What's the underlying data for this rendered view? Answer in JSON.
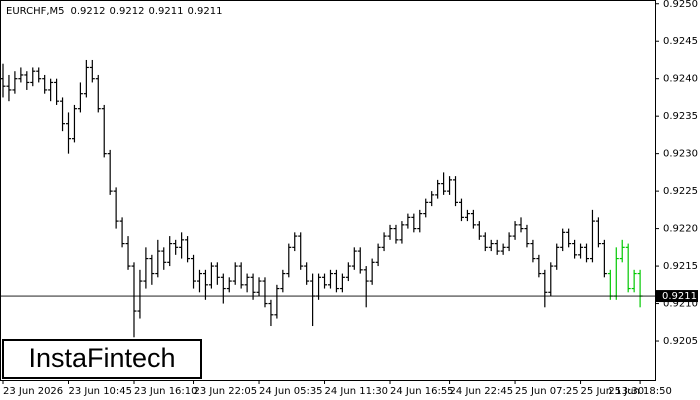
{
  "chart_data": {
    "type": "ohlc",
    "symbol": "EURCHF,M5",
    "quote": [
      0.9212,
      0.9212,
      0.9211,
      0.9211
    ],
    "brand": "InstaFintech",
    "current_price": 0.9211,
    "ylim": [
      0.91998,
      0.92505
    ],
    "yticks": [
      {
        "value": 0.925,
        "label": "0.9250"
      },
      0.9245,
      {
        "value": 0.924,
        "label": "0.9240"
      },
      0.9235,
      {
        "value": 0.923,
        "label": "0.9230"
      },
      0.9225,
      {
        "value": 0.922,
        "label": "0.9220"
      },
      0.9215,
      {
        "value": 0.921,
        "label": "0.9210"
      },
      0.9205
    ],
    "xlim": [
      0,
      109
    ],
    "xticks": [
      {
        "value": 0,
        "label": "23 Jun 2026"
      },
      {
        "value": 11,
        "label": "23 Jun 10:45"
      },
      {
        "value": 22,
        "label": "23 Jun 16:10"
      },
      {
        "value": 32,
        "label": "23 Jun 22:05"
      },
      {
        "value": 43,
        "label": "24 Jun 05:35"
      },
      {
        "value": 54,
        "label": "24 Jun 11:30"
      },
      {
        "value": 65,
        "label": "24 Jun 16:55"
      },
      {
        "value": 75,
        "label": "24 Jun 22:45"
      },
      {
        "value": 86,
        "label": "25 Jun 07:25"
      },
      {
        "value": 97,
        "label": "25 Jun 13:30"
      },
      {
        "value": 107,
        "label": "25 Jun 18:50"
      }
    ],
    "series": [
      {
        "color": "#000000",
        "x0": 0,
        "ohlc": [
          [
            0.924,
            0.9242,
            0.92375,
            0.9239
          ],
          [
            0.9239,
            0.92405,
            0.9237,
            0.92385
          ],
          [
            0.92385,
            0.9241,
            0.9238,
            0.924
          ],
          [
            0.924,
            0.92415,
            0.92395,
            0.92405
          ],
          [
            0.92405,
            0.9241,
            0.92385,
            0.92395
          ],
          [
            0.92395,
            0.92415,
            0.9239,
            0.9241
          ],
          [
            0.9241,
            0.92415,
            0.92395,
            0.924
          ],
          [
            0.924,
            0.92405,
            0.9238,
            0.92385
          ],
          [
            0.92385,
            0.924,
            0.9237,
            0.92395
          ],
          [
            0.92395,
            0.924,
            0.92365,
            0.9237
          ],
          [
            0.9237,
            0.92375,
            0.9233,
            0.9234
          ],
          [
            0.9234,
            0.92355,
            0.923,
            0.9232
          ],
          [
            0.9232,
            0.92365,
            0.92315,
            0.9236
          ],
          [
            0.9236,
            0.92395,
            0.92355,
            0.9238
          ],
          [
            0.9238,
            0.92425,
            0.92375,
            0.92415
          ],
          [
            0.92415,
            0.92425,
            0.92395,
            0.924
          ],
          [
            0.924,
            0.92405,
            0.92355,
            0.9236
          ],
          [
            0.9236,
            0.92365,
            0.92295,
            0.923
          ],
          [
            0.923,
            0.92305,
            0.92245,
            0.9225
          ],
          [
            0.9225,
            0.92255,
            0.922,
            0.9221
          ],
          [
            0.9221,
            0.92215,
            0.92175,
            0.9218
          ],
          [
            0.9218,
            0.9219,
            0.92145,
            0.9215
          ],
          [
            0.9215,
            0.92155,
            0.92055,
            0.9209
          ],
          [
            0.9209,
            0.92145,
            0.9208,
            0.9213
          ],
          [
            0.9213,
            0.92175,
            0.9212,
            0.9216
          ],
          [
            0.9216,
            0.92165,
            0.92125,
            0.9214
          ],
          [
            0.9214,
            0.92185,
            0.92135,
            0.9217
          ],
          [
            0.9217,
            0.92175,
            0.92145,
            0.92155
          ],
          [
            0.92155,
            0.9219,
            0.9215,
            0.9218
          ],
          [
            0.9218,
            0.92185,
            0.92165,
            0.92175
          ],
          [
            0.92175,
            0.92195,
            0.9216,
            0.92185
          ],
          [
            0.92185,
            0.9219,
            0.92155,
            0.9216
          ],
          [
            0.9216,
            0.92165,
            0.9212,
            0.9213
          ],
          [
            0.9213,
            0.92145,
            0.92115,
            0.9214
          ],
          [
            0.9214,
            0.92145,
            0.92105,
            0.92125
          ],
          [
            0.92125,
            0.92155,
            0.9212,
            0.9215
          ],
          [
            0.9215,
            0.92155,
            0.92125,
            0.92135
          ],
          [
            0.92135,
            0.9214,
            0.921,
            0.9212
          ],
          [
            0.9212,
            0.92135,
            0.92115,
            0.9213
          ],
          [
            0.9213,
            0.92155,
            0.92125,
            0.9215
          ],
          [
            0.9215,
            0.92155,
            0.9212,
            0.92125
          ],
          [
            0.92125,
            0.9214,
            0.92115,
            0.92135
          ],
          [
            0.92135,
            0.9214,
            0.92105,
            0.92115
          ],
          [
            0.92115,
            0.92135,
            0.9211,
            0.9213
          ],
          [
            0.9213,
            0.92135,
            0.92095,
            0.921
          ],
          [
            0.921,
            0.92105,
            0.9207,
            0.92085
          ],
          [
            0.92085,
            0.92125,
            0.9208,
            0.9212
          ],
          [
            0.9212,
            0.92145,
            0.92115,
            0.9214
          ],
          [
            0.9214,
            0.9218,
            0.92135,
            0.92175
          ],
          [
            0.92175,
            0.92195,
            0.9217,
            0.9219
          ],
          [
            0.9219,
            0.92195,
            0.92145,
            0.9215
          ],
          [
            0.9215,
            0.92155,
            0.92125,
            0.9213
          ],
          [
            0.9213,
            0.9214,
            0.9207,
            0.9211
          ],
          [
            0.9211,
            0.9214,
            0.92105,
            0.92135
          ],
          [
            0.92135,
            0.9214,
            0.9212,
            0.92125
          ],
          [
            0.92125,
            0.92145,
            0.9212,
            0.9214
          ],
          [
            0.9214,
            0.92145,
            0.92115,
            0.9212
          ],
          [
            0.9212,
            0.9214,
            0.92115,
            0.92135
          ],
          [
            0.92135,
            0.92155,
            0.9213,
            0.9215
          ],
          [
            0.9215,
            0.92175,
            0.92145,
            0.9217
          ],
          [
            0.9217,
            0.92175,
            0.9214,
            0.92145
          ],
          [
            0.92145,
            0.9215,
            0.92095,
            0.9213
          ],
          [
            0.9213,
            0.9216,
            0.92125,
            0.92155
          ],
          [
            0.92155,
            0.9218,
            0.9215,
            0.92175
          ],
          [
            0.92175,
            0.92195,
            0.9217,
            0.9219
          ],
          [
            0.9219,
            0.92205,
            0.92185,
            0.922
          ],
          [
            0.922,
            0.92205,
            0.9218,
            0.92185
          ],
          [
            0.92185,
            0.9221,
            0.9218,
            0.92205
          ],
          [
            0.92205,
            0.9222,
            0.922,
            0.92215
          ],
          [
            0.92215,
            0.9222,
            0.92195,
            0.922
          ],
          [
            0.922,
            0.92225,
            0.92195,
            0.9222
          ],
          [
            0.9222,
            0.9224,
            0.92215,
            0.92235
          ],
          [
            0.92235,
            0.9225,
            0.9223,
            0.92245
          ],
          [
            0.92245,
            0.92265,
            0.9224,
            0.9226
          ],
          [
            0.9226,
            0.92275,
            0.92245,
            0.9225
          ],
          [
            0.9225,
            0.9227,
            0.92245,
            0.92265
          ],
          [
            0.92265,
            0.9227,
            0.9223,
            0.92235
          ],
          [
            0.92235,
            0.9224,
            0.9221,
            0.92215
          ],
          [
            0.92215,
            0.92225,
            0.9221,
            0.9222
          ],
          [
            0.9222,
            0.92225,
            0.922,
            0.92205
          ],
          [
            0.92205,
            0.9221,
            0.92185,
            0.9219
          ],
          [
            0.9219,
            0.92195,
            0.9217,
            0.92175
          ],
          [
            0.92175,
            0.92185,
            0.9217,
            0.9218
          ],
          [
            0.9218,
            0.92185,
            0.92165,
            0.9217
          ],
          [
            0.9217,
            0.9218,
            0.92165,
            0.92175
          ],
          [
            0.92175,
            0.92195,
            0.9217,
            0.9219
          ],
          [
            0.9219,
            0.9221,
            0.92185,
            0.92205
          ],
          [
            0.92205,
            0.92215,
            0.92195,
            0.922
          ],
          [
            0.922,
            0.92205,
            0.92175,
            0.9218
          ],
          [
            0.9218,
            0.92185,
            0.92155,
            0.9216
          ],
          [
            0.9216,
            0.92165,
            0.92135,
            0.9214
          ],
          [
            0.9214,
            0.92145,
            0.92095,
            0.92115
          ],
          [
            0.92115,
            0.92155,
            0.9211,
            0.9215
          ],
          [
            0.9215,
            0.9218,
            0.92145,
            0.92175
          ],
          [
            0.92175,
            0.922,
            0.9217,
            0.92195
          ],
          [
            0.92195,
            0.922,
            0.92175,
            0.9218
          ],
          [
            0.9218,
            0.92185,
            0.9216,
            0.92165
          ],
          [
            0.92165,
            0.9218,
            0.9216,
            0.92175
          ],
          [
            0.92175,
            0.9218,
            0.92155,
            0.9216
          ],
          [
            0.9216,
            0.92225,
            0.92155,
            0.9221
          ],
          [
            0.9221,
            0.92215,
            0.92175,
            0.9218
          ],
          [
            0.9218,
            0.92185,
            0.92135,
            0.9214
          ]
        ]
      },
      {
        "color": "#00c800",
        "x0": 102,
        "ohlc": [
          [
            0.9214,
            0.92145,
            0.92105,
            0.9211
          ],
          [
            0.9211,
            0.92175,
            0.92105,
            0.9216
          ],
          [
            0.9216,
            0.92185,
            0.92155,
            0.92175
          ],
          [
            0.92175,
            0.9218,
            0.92115,
            0.9212
          ],
          [
            0.9212,
            0.92145,
            0.92115,
            0.9214
          ],
          [
            0.9214,
            0.92145,
            0.92095,
            0.9211
          ]
        ]
      }
    ]
  }
}
